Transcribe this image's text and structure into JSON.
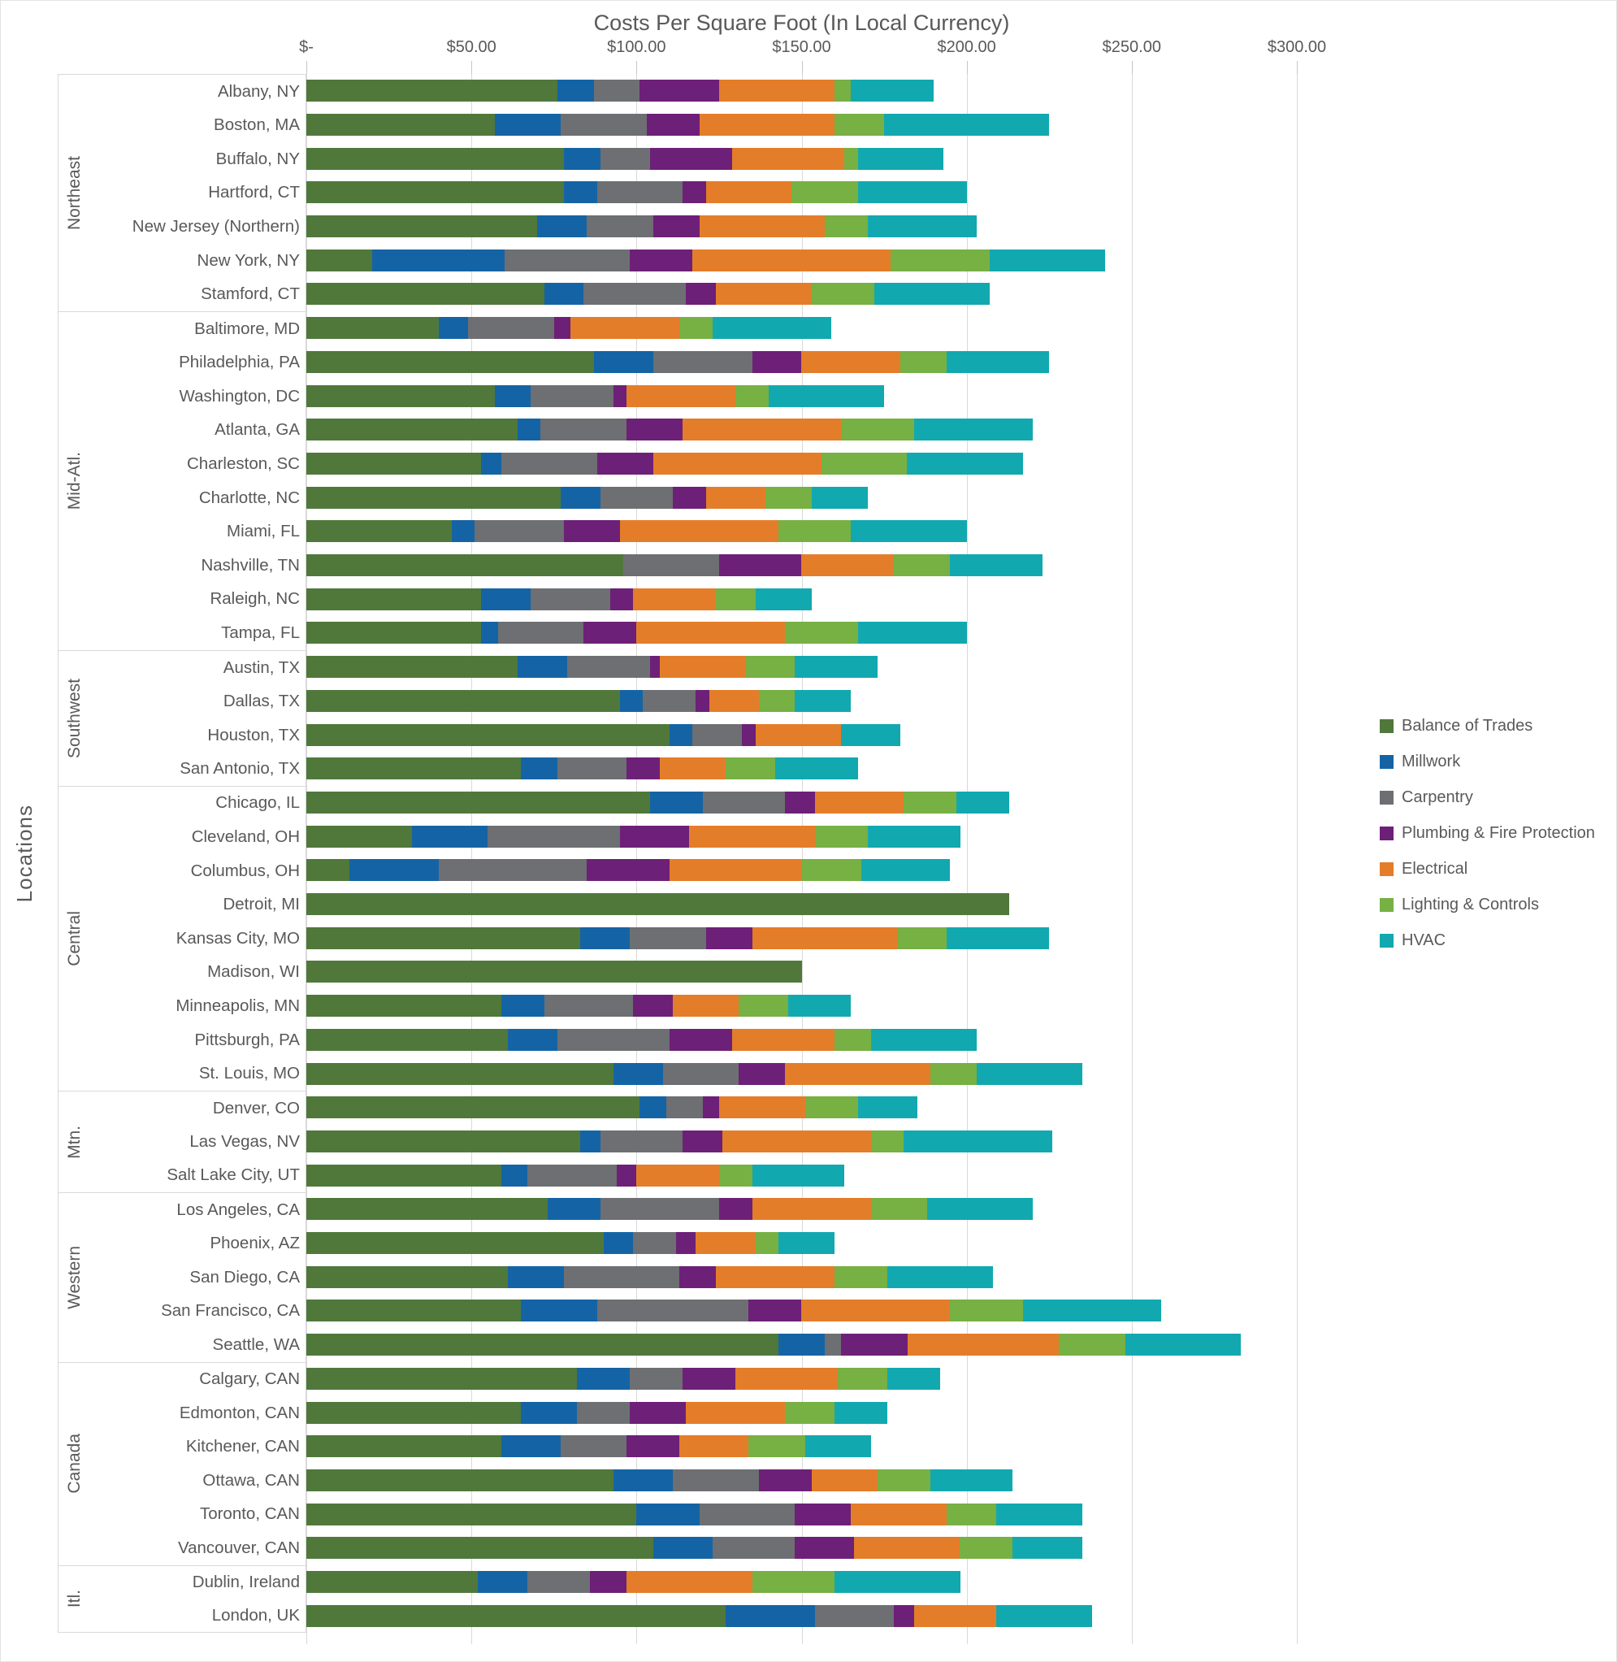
{
  "chart_data": {
    "type": "bar",
    "stacked": true,
    "orientation": "horizontal",
    "title": "Costs Per Square Foot (In Local Currency)",
    "ylabel": "Locations",
    "xlabel": "",
    "xlim": [
      0,
      300
    ],
    "grid": true,
    "x_ticks": [
      "$-",
      "$50.00",
      "$100.00",
      "$150.00",
      "$200.00",
      "$250.00",
      "$300.00"
    ],
    "series_names": [
      "Balance of Trades",
      "Millwork",
      "Carpentry",
      "Plumbing & Fire Protection",
      "Electrical",
      "Lighting & Controls",
      "HVAC"
    ],
    "colors": [
      "#50783b",
      "#1464a5",
      "#6d6f72",
      "#6d2077",
      "#e47d29",
      "#77b043",
      "#12a8b0"
    ],
    "legend": {
      "position": "right",
      "items": [
        {
          "label": "Balance of Trades",
          "color": "#50783b"
        },
        {
          "label": "Millwork",
          "color": "#1464a5"
        },
        {
          "label": "Carpentry",
          "color": "#6d6f72"
        },
        {
          "label": "Plumbing & Fire Protection",
          "color": "#6d2077"
        },
        {
          "label": "Electrical",
          "color": "#e47d29"
        },
        {
          "label": "Lighting & Controls",
          "color": "#77b043"
        },
        {
          "label": "HVAC",
          "color": "#12a8b0"
        }
      ]
    },
    "regions": [
      {
        "name": "Northeast",
        "locations": [
          {
            "label": "Albany, NY",
            "values": [
              76,
              11,
              14,
              24,
              35,
              5,
              25
            ]
          },
          {
            "label": "Boston, MA",
            "values": [
              57,
              20,
              26,
              16,
              41,
              15,
              50
            ]
          },
          {
            "label": "Buffalo, NY",
            "values": [
              78,
              11,
              15,
              25,
              34,
              4,
              26
            ]
          },
          {
            "label": "Hartford, CT",
            "values": [
              78,
              10,
              26,
              7,
              26,
              20,
              33
            ]
          },
          {
            "label": "New Jersey (Northern)",
            "values": [
              70,
              15,
              20,
              14,
              38,
              13,
              33
            ]
          },
          {
            "label": "New York, NY",
            "values": [
              20,
              40,
              38,
              19,
              60,
              30,
              35
            ]
          },
          {
            "label": "Stamford, CT",
            "values": [
              72,
              12,
              31,
              9,
              29,
              19,
              35
            ]
          }
        ]
      },
      {
        "name": "Mid-Atl.",
        "locations": [
          {
            "label": "Baltimore, MD",
            "values": [
              40,
              9,
              26,
              5,
              33,
              10,
              36
            ]
          },
          {
            "label": "Philadelphia, PA",
            "values": [
              87,
              18,
              30,
              15,
              30,
              14,
              31
            ]
          },
          {
            "label": "Washington, DC",
            "values": [
              57,
              11,
              25,
              4,
              33,
              10,
              35
            ]
          },
          {
            "label": "Atlanta, GA",
            "values": [
              64,
              7,
              26,
              17,
              48,
              22,
              36
            ]
          },
          {
            "label": "Charleston, SC",
            "values": [
              53,
              6,
              29,
              17,
              51,
              26,
              35
            ]
          },
          {
            "label": "Charlotte, NC",
            "values": [
              77,
              12,
              22,
              10,
              18,
              14,
              17
            ]
          },
          {
            "label": "Miami, FL",
            "values": [
              44,
              7,
              27,
              17,
              48,
              22,
              35
            ]
          },
          {
            "label": "Nashville, TN",
            "values": [
              96,
              0,
              29,
              25,
              28,
              17,
              28
            ]
          },
          {
            "label": "Raleigh, NC",
            "values": [
              53,
              15,
              24,
              7,
              25,
              12,
              17
            ]
          },
          {
            "label": "Tampa, FL",
            "values": [
              53,
              5,
              26,
              16,
              45,
              22,
              33
            ]
          }
        ]
      },
      {
        "name": "Southwest",
        "locations": [
          {
            "label": "Austin, TX",
            "values": [
              64,
              15,
              25,
              3,
              26,
              15,
              25
            ]
          },
          {
            "label": "Dallas, TX",
            "values": [
              95,
              7,
              16,
              4,
              15,
              11,
              17
            ]
          },
          {
            "label": "Houston, TX",
            "values": [
              110,
              7,
              15,
              4,
              26,
              0,
              18
            ]
          },
          {
            "label": "San Antonio, TX",
            "values": [
              65,
              11,
              21,
              10,
              20,
              15,
              25
            ]
          }
        ]
      },
      {
        "name": "Central",
        "locations": [
          {
            "label": "Chicago, IL",
            "values": [
              104,
              16,
              25,
              9,
              27,
              16,
              16
            ]
          },
          {
            "label": "Cleveland, OH",
            "values": [
              32,
              23,
              40,
              21,
              38,
              16,
              28
            ]
          },
          {
            "label": "Columbus, OH",
            "values": [
              13,
              27,
              45,
              25,
              40,
              18,
              27
            ]
          },
          {
            "label": "Detroit, MI",
            "values": [
              213,
              0,
              0,
              0,
              0,
              0,
              0
            ]
          },
          {
            "label": "Kansas City, MO",
            "values": [
              83,
              15,
              23,
              14,
              44,
              15,
              31
            ]
          },
          {
            "label": "Madison, WI",
            "values": [
              150,
              0,
              0,
              0,
              0,
              0,
              0
            ]
          },
          {
            "label": "Minneapolis, MN",
            "values": [
              59,
              13,
              27,
              12,
              20,
              15,
              19
            ]
          },
          {
            "label": "Pittsburgh, PA",
            "values": [
              61,
              15,
              34,
              19,
              31,
              11,
              32
            ]
          },
          {
            "label": "St. Louis, MO",
            "values": [
              93,
              15,
              23,
              14,
              44,
              14,
              32
            ]
          }
        ]
      },
      {
        "name": "Mtn.",
        "locations": [
          {
            "label": "Denver, CO",
            "values": [
              101,
              8,
              11,
              5,
              26,
              16,
              18
            ]
          },
          {
            "label": "Las Vegas, NV",
            "values": [
              83,
              6,
              25,
              12,
              45,
              10,
              45
            ]
          },
          {
            "label": "Salt Lake City, UT",
            "values": [
              59,
              8,
              27,
              6,
              25,
              10,
              28
            ]
          }
        ]
      },
      {
        "name": "Western",
        "locations": [
          {
            "label": "Los Angeles, CA",
            "values": [
              73,
              16,
              36,
              10,
              36,
              17,
              32
            ]
          },
          {
            "label": "Phoenix, AZ",
            "values": [
              90,
              9,
              13,
              6,
              18,
              7,
              17
            ]
          },
          {
            "label": "San Diego, CA",
            "values": [
              61,
              17,
              35,
              11,
              36,
              16,
              32
            ]
          },
          {
            "label": "San Francisco, CA",
            "values": [
              65,
              23,
              46,
              16,
              45,
              22,
              42
            ]
          },
          {
            "label": "Seattle, WA",
            "values": [
              143,
              14,
              5,
              20,
              46,
              20,
              35
            ]
          }
        ]
      },
      {
        "name": "Canada",
        "locations": [
          {
            "label": "Calgary, CAN",
            "values": [
              82,
              16,
              16,
              16,
              31,
              15,
              16
            ]
          },
          {
            "label": "Edmonton, CAN",
            "values": [
              65,
              17,
              16,
              17,
              30,
              15,
              16
            ]
          },
          {
            "label": "Kitchener, CAN",
            "values": [
              59,
              18,
              20,
              16,
              21,
              17,
              20
            ]
          },
          {
            "label": "Ottawa, CAN",
            "values": [
              93,
              18,
              26,
              16,
              20,
              16,
              25
            ]
          },
          {
            "label": "Toronto, CAN",
            "values": [
              100,
              19,
              29,
              17,
              29,
              15,
              26
            ]
          },
          {
            "label": "Vancouver, CAN",
            "values": [
              105,
              18,
              25,
              18,
              32,
              16,
              21
            ]
          }
        ]
      },
      {
        "name": "Itl.",
        "locations": [
          {
            "label": "Dublin, Ireland",
            "values": [
              52,
              15,
              19,
              11,
              38,
              25,
              38
            ]
          },
          {
            "label": "London, UK",
            "values": [
              127,
              27,
              24,
              6,
              25,
              0,
              29
            ]
          }
        ]
      }
    ]
  }
}
